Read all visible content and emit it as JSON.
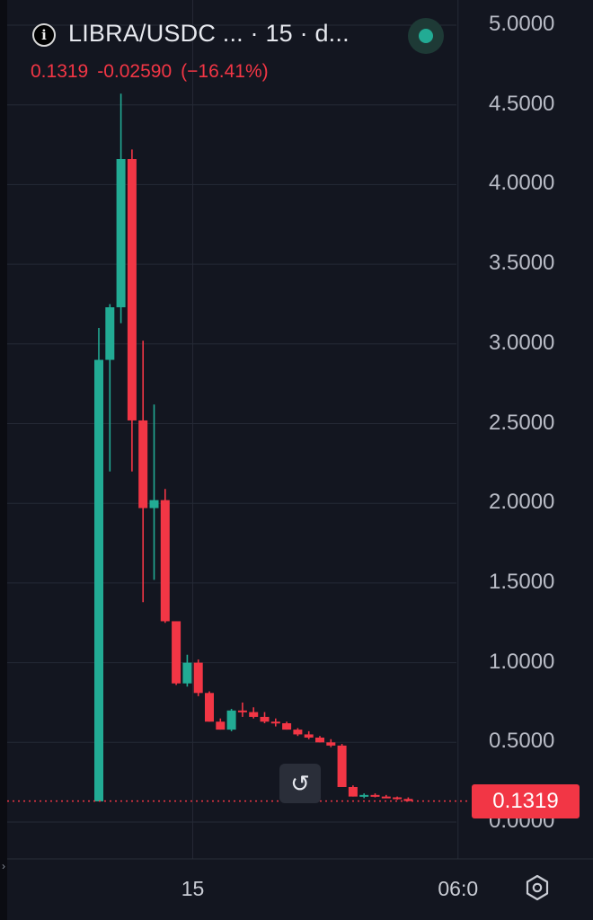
{
  "header": {
    "info_icon": "info-icon",
    "title": "LIBRA/USDC ...   · 15 · d...",
    "status_color": "#22ab94",
    "last": "0.1319",
    "change": "-0.02590",
    "change_pct": "(−16.41%)"
  },
  "price_tag": {
    "label": "0.1319",
    "color": "#f23645"
  },
  "controls": {
    "reset_icon": "reset-scale-icon",
    "reset_glyph": "↺",
    "settings_icon": "settings-hexagon-icon"
  },
  "colors": {
    "up": "#22ab94",
    "down": "#f23645",
    "background": "#131620",
    "grid": "#252a36"
  },
  "chart_data": {
    "type": "candlestick",
    "title": "LIBRA/USDC ...   · 15 · d...",
    "interval": "15",
    "ylim": [
      -0.05,
      5.05
    ],
    "yticks": [
      {
        "value": 5.0,
        "label": "5.0000"
      },
      {
        "value": 4.5,
        "label": "4.5000"
      },
      {
        "value": 4.0,
        "label": "4.0000"
      },
      {
        "value": 3.5,
        "label": "3.5000"
      },
      {
        "value": 3.0,
        "label": "3.0000"
      },
      {
        "value": 2.5,
        "label": "2.5000"
      },
      {
        "value": 2.0,
        "label": "2.0000"
      },
      {
        "value": 1.5,
        "label": "1.5000"
      },
      {
        "value": 1.0,
        "label": "1.0000"
      },
      {
        "value": 0.5,
        "label": "0.5000"
      },
      {
        "value": 0.0,
        "label": "0.0000"
      }
    ],
    "xticks": [
      {
        "index": 8.5,
        "label": "15"
      },
      {
        "index": 32.5,
        "label": "06:0"
      }
    ],
    "last_price": 0.1319,
    "grid": true,
    "candles": [
      {
        "o": 0.13,
        "h": 3.1,
        "l": 0.13,
        "c": 2.9
      },
      {
        "o": 2.9,
        "h": 3.25,
        "l": 2.2,
        "c": 3.23
      },
      {
        "o": 3.23,
        "h": 4.57,
        "l": 3.13,
        "c": 4.16
      },
      {
        "o": 4.16,
        "h": 4.22,
        "l": 2.2,
        "c": 2.52
      },
      {
        "o": 2.52,
        "h": 3.02,
        "l": 1.38,
        "c": 1.97
      },
      {
        "o": 1.97,
        "h": 2.62,
        "l": 1.52,
        "c": 2.02
      },
      {
        "o": 2.02,
        "h": 2.09,
        "l": 1.25,
        "c": 1.26
      },
      {
        "o": 1.26,
        "h": 1.26,
        "l": 0.86,
        "c": 0.87
      },
      {
        "o": 0.87,
        "h": 1.05,
        "l": 0.85,
        "c": 1.0
      },
      {
        "o": 1.0,
        "h": 1.02,
        "l": 0.79,
        "c": 0.81
      },
      {
        "o": 0.81,
        "h": 0.82,
        "l": 0.63,
        "c": 0.63
      },
      {
        "o": 0.63,
        "h": 0.65,
        "l": 0.58,
        "c": 0.58
      },
      {
        "o": 0.58,
        "h": 0.71,
        "l": 0.57,
        "c": 0.7
      },
      {
        "o": 0.7,
        "h": 0.75,
        "l": 0.66,
        "c": 0.69
      },
      {
        "o": 0.69,
        "h": 0.72,
        "l": 0.65,
        "c": 0.66
      },
      {
        "o": 0.66,
        "h": 0.69,
        "l": 0.62,
        "c": 0.63
      },
      {
        "o": 0.63,
        "h": 0.65,
        "l": 0.6,
        "c": 0.62
      },
      {
        "o": 0.62,
        "h": 0.63,
        "l": 0.58,
        "c": 0.58
      },
      {
        "o": 0.58,
        "h": 0.59,
        "l": 0.54,
        "c": 0.55
      },
      {
        "o": 0.55,
        "h": 0.57,
        "l": 0.52,
        "c": 0.53
      },
      {
        "o": 0.53,
        "h": 0.54,
        "l": 0.5,
        "c": 0.5
      },
      {
        "o": 0.5,
        "h": 0.52,
        "l": 0.47,
        "c": 0.48
      },
      {
        "o": 0.48,
        "h": 0.49,
        "l": 0.22,
        "c": 0.22
      },
      {
        "o": 0.22,
        "h": 0.23,
        "l": 0.16,
        "c": 0.16
      },
      {
        "o": 0.16,
        "h": 0.18,
        "l": 0.15,
        "c": 0.17
      },
      {
        "o": 0.17,
        "h": 0.18,
        "l": 0.155,
        "c": 0.16
      },
      {
        "o": 0.16,
        "h": 0.17,
        "l": 0.15,
        "c": 0.155
      },
      {
        "o": 0.155,
        "h": 0.16,
        "l": 0.14,
        "c": 0.145
      },
      {
        "o": 0.145,
        "h": 0.155,
        "l": 0.13,
        "c": 0.1319
      }
    ]
  }
}
